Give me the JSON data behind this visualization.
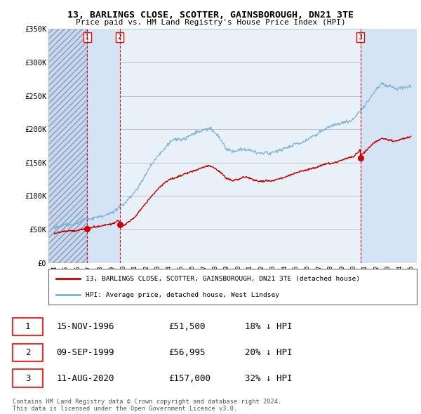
{
  "title": "13, BARLINGS CLOSE, SCOTTER, GAINSBOROUGH, DN21 3TE",
  "subtitle": "Price paid vs. HM Land Registry's House Price Index (HPI)",
  "ylim": [
    0,
    350000
  ],
  "yticks": [
    0,
    50000,
    100000,
    150000,
    200000,
    250000,
    300000,
    350000
  ],
  "ytick_labels": [
    "£0",
    "£50K",
    "£100K",
    "£150K",
    "£200K",
    "£250K",
    "£300K",
    "£350K"
  ],
  "hpi_color": "#7bafd4",
  "price_color": "#cc0000",
  "vline_color": "#cc0000",
  "background_color": "#ffffff",
  "plot_bg_color": "#e8f0f8",
  "hatched_color": "#c8d8ec",
  "grid_color": "#b0bcd0",
  "legend_label_red": "13, BARLINGS CLOSE, SCOTTER, GAINSBOROUGH, DN21 3TE (detached house)",
  "legend_label_blue": "HPI: Average price, detached house, West Lindsey",
  "transactions": [
    {
      "num": 1,
      "date": "15-NOV-1996",
      "price": 51500,
      "pct": "18%",
      "x_year": 1996.87
    },
    {
      "num": 2,
      "date": "09-SEP-1999",
      "price": 56995,
      "pct": "20%",
      "x_year": 1999.69
    },
    {
      "num": 3,
      "date": "11-AUG-2020",
      "price": 157000,
      "pct": "32%",
      "x_year": 2020.61
    }
  ],
  "table_rows": [
    [
      "1",
      "15-NOV-1996",
      "£51,500",
      "18% ↓ HPI"
    ],
    [
      "2",
      "09-SEP-1999",
      "£56,995",
      "20% ↓ HPI"
    ],
    [
      "3",
      "11-AUG-2020",
      "£157,000",
      "32% ↓ HPI"
    ]
  ],
  "footer": "Contains HM Land Registry data © Crown copyright and database right 2024.\nThis data is licensed under the Open Government Licence v3.0.",
  "xlim_left": 1993.5,
  "xlim_right": 2025.5,
  "xticks": [
    1994,
    1995,
    1996,
    1997,
    1998,
    1999,
    2000,
    2001,
    2002,
    2003,
    2004,
    2005,
    2006,
    2007,
    2008,
    2009,
    2010,
    2011,
    2012,
    2013,
    2014,
    2015,
    2016,
    2017,
    2018,
    2019,
    2020,
    2021,
    2022,
    2023,
    2024,
    2025
  ]
}
